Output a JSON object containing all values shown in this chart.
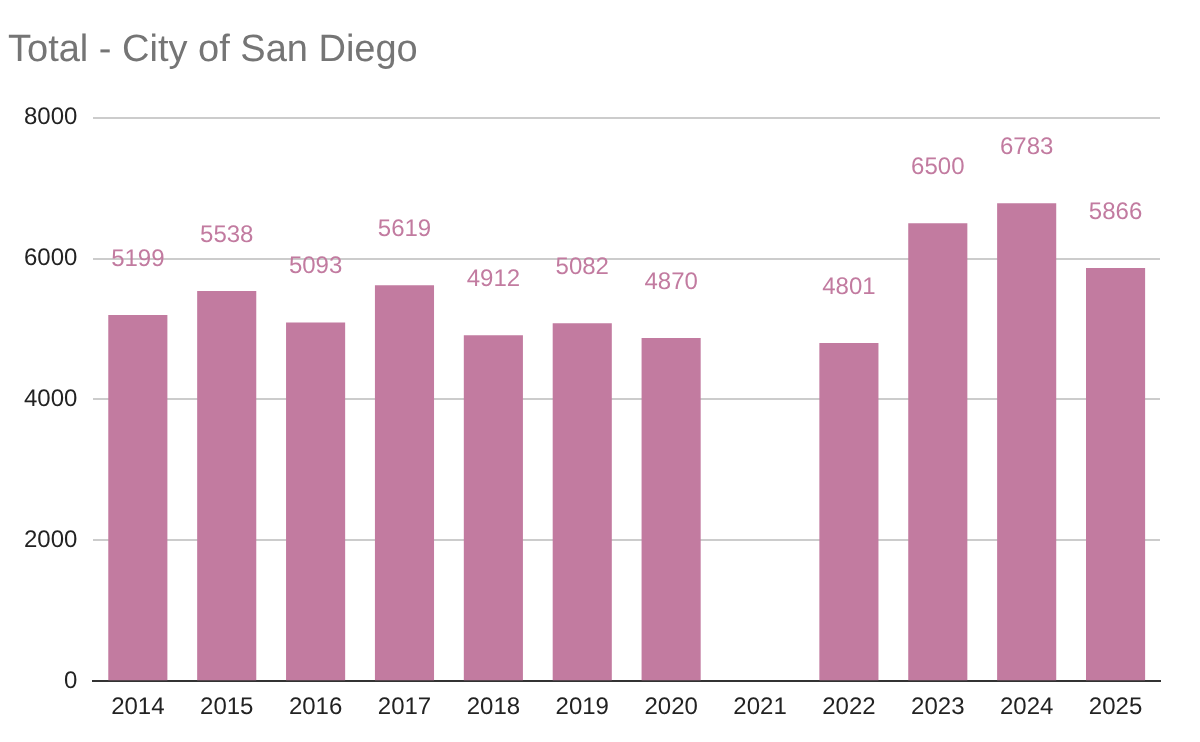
{
  "chart_data": {
    "type": "bar",
    "title": "Total - City of San Diego",
    "categories": [
      "2014",
      "2015",
      "2016",
      "2017",
      "2018",
      "2019",
      "2020",
      "2021",
      "2022",
      "2023",
      "2024",
      "2025"
    ],
    "values": [
      5199,
      5538,
      5093,
      5619,
      4912,
      5082,
      4870,
      null,
      4801,
      6500,
      6783,
      5866
    ],
    "color": "#c27ba0",
    "ylim": [
      0,
      8000
    ],
    "yticks": [
      0,
      2000,
      4000,
      6000,
      8000
    ],
    "grid": "y",
    "data_labels": true
  }
}
